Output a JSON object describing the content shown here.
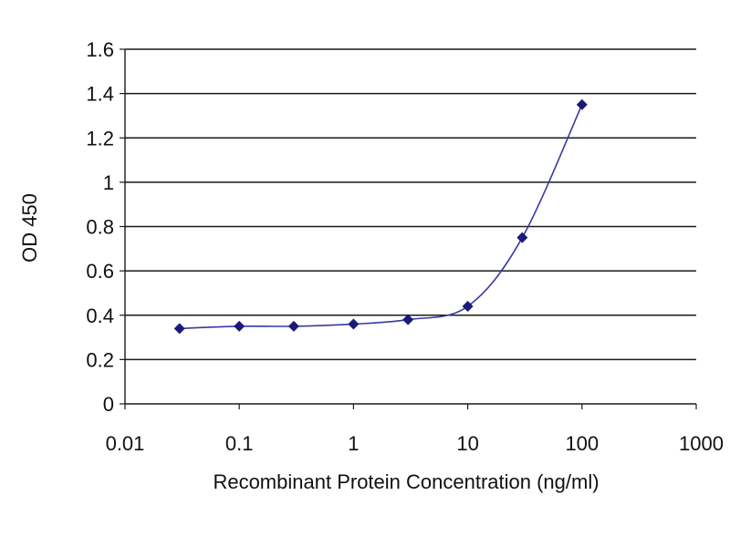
{
  "chart_data": {
    "type": "line",
    "title": "",
    "xlabel": "Recombinant Protein Concentration (ng/ml)",
    "ylabel": "OD 450",
    "x_scale": "log",
    "xlim": [
      0.01,
      1000
    ],
    "ylim": [
      0,
      1.6
    ],
    "x_ticks": [
      0.01,
      0.1,
      1,
      10,
      100,
      1000
    ],
    "x_tick_labels": [
      "0.01",
      "0.1",
      "1",
      "10",
      "100",
      "1000"
    ],
    "y_ticks": [
      0,
      0.2,
      0.4,
      0.6,
      0.8,
      1,
      1.2,
      1.4,
      1.6
    ],
    "y_tick_labels": [
      "0",
      "0.2",
      "0.4",
      "0.6",
      "0.8",
      "1",
      "1.2",
      "1.4",
      "1.6"
    ],
    "grid": "horizontal",
    "legend": "none",
    "series": [
      {
        "x": [
          0.03,
          0.1,
          0.3,
          1,
          3,
          10,
          30,
          100
        ],
        "y": [
          0.34,
          0.35,
          0.35,
          0.36,
          0.38,
          0.44,
          0.75,
          1.35
        ],
        "color": "#1a1a7a"
      }
    ]
  }
}
